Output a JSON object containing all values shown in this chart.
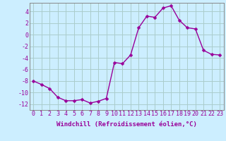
{
  "x": [
    0,
    1,
    2,
    3,
    4,
    5,
    6,
    7,
    8,
    9,
    10,
    11,
    12,
    13,
    14,
    15,
    16,
    17,
    18,
    19,
    20,
    21,
    22,
    23
  ],
  "y": [
    -8,
    -8.6,
    -9.3,
    -10.8,
    -11.4,
    -11.4,
    -11.2,
    -11.8,
    -11.5,
    -11.0,
    -4.8,
    -5.0,
    -3.5,
    1.2,
    3.2,
    3.0,
    4.6,
    5.0,
    2.5,
    1.2,
    1.0,
    -2.7,
    -3.4,
    -3.5
  ],
  "line_color": "#990099",
  "marker_color": "#990099",
  "bg_color": "#cceeff",
  "grid_color": "#aacccc",
  "xlabel": "Windchill (Refroidissement éolien,°C)",
  "xlim": [
    -0.5,
    23.5
  ],
  "ylim": [
    -13,
    5.5
  ],
  "yticks": [
    -12,
    -10,
    -8,
    -6,
    -4,
    -2,
    0,
    2,
    4
  ],
  "xticks": [
    0,
    1,
    2,
    3,
    4,
    5,
    6,
    7,
    8,
    9,
    10,
    11,
    12,
    13,
    14,
    15,
    16,
    17,
    18,
    19,
    20,
    21,
    22,
    23
  ],
  "xlabel_fontsize": 6.5,
  "tick_fontsize": 6.0,
  "marker_size": 2.5,
  "line_width": 1.0
}
